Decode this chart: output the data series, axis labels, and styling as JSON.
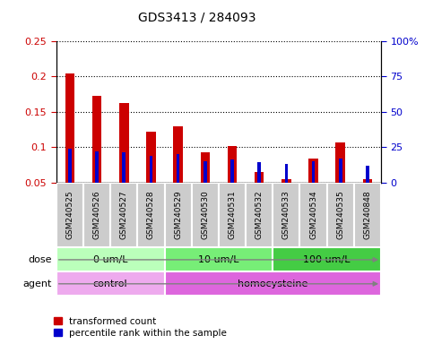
{
  "title": "GDS3413 / 284093",
  "samples": [
    "GSM240525",
    "GSM240526",
    "GSM240527",
    "GSM240528",
    "GSM240529",
    "GSM240530",
    "GSM240531",
    "GSM240532",
    "GSM240533",
    "GSM240534",
    "GSM240535",
    "GSM240848"
  ],
  "transformed_count": [
    0.205,
    0.172,
    0.163,
    0.122,
    0.129,
    0.093,
    0.101,
    0.065,
    0.055,
    0.084,
    0.107,
    0.055
  ],
  "percentile_rank": [
    24,
    22,
    21,
    19,
    20,
    15,
    16,
    14,
    13,
    15,
    17,
    12
  ],
  "bar_bottom": 0.05,
  "ylim": [
    0.05,
    0.25
  ],
  "y2lim": [
    0,
    100
  ],
  "yticks": [
    0.05,
    0.1,
    0.15,
    0.2,
    0.25
  ],
  "ytick_labels": [
    "0.05",
    "0.1",
    "0.15",
    "0.2",
    "0.25"
  ],
  "y2ticks": [
    0,
    25,
    50,
    75,
    100
  ],
  "y2tick_labels": [
    "0",
    "25",
    "50",
    "75",
    "100%"
  ],
  "red_color": "#cc0000",
  "blue_color": "#0000cc",
  "dose_colors": [
    "#bbffbb",
    "#77ee77",
    "#44cc44"
  ],
  "agent_colors": [
    "#eeaaee",
    "#dd66dd"
  ],
  "dose_groups": [
    {
      "label": "0 um/L",
      "start": 0,
      "end": 3
    },
    {
      "label": "10 um/L",
      "start": 4,
      "end": 7
    },
    {
      "label": "100 um/L",
      "start": 8,
      "end": 11
    }
  ],
  "agent_groups": [
    {
      "label": "control",
      "start": 0,
      "end": 3
    },
    {
      "label": "homocysteine",
      "start": 4,
      "end": 11
    }
  ],
  "legend_items": [
    {
      "label": "transformed count",
      "color": "#cc0000"
    },
    {
      "label": "percentile rank within the sample",
      "color": "#0000cc"
    }
  ],
  "sample_box_color": "#cccccc",
  "bar_width": 0.35,
  "blue_bar_width": 0.12
}
